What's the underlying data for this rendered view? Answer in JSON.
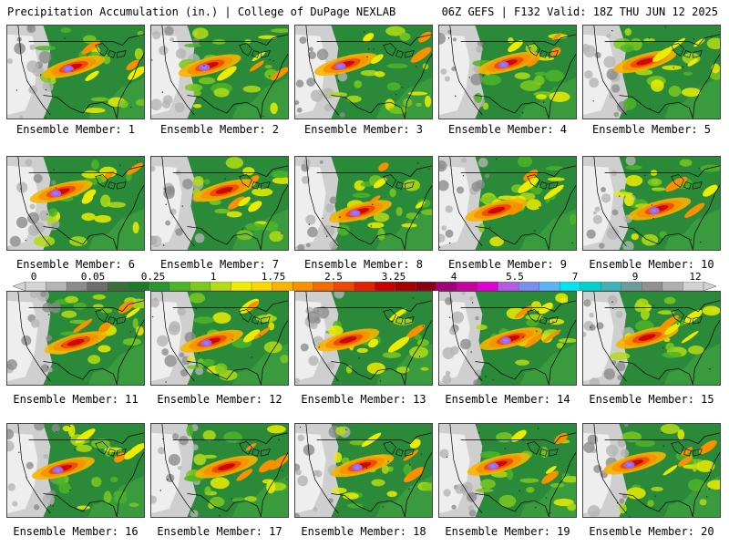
{
  "header": {
    "left_title": "Precipitation Accumulation (in.) | College of DuPage NEXLAB",
    "right_title": "06Z GEFS | F132 Valid: 18Z THU JUN 12 2025"
  },
  "colorbar": {
    "labels": [
      "0",
      "0.05",
      "0.25",
      "1",
      "1.75",
      "2.5",
      "3.25",
      "4",
      "5.5",
      "7",
      "9",
      "12"
    ],
    "colors": [
      "#d4d4d4",
      "#b4b4b4",
      "#8c8c8c",
      "#6e6e6e",
      "#3c6e3c",
      "#1e7a28",
      "#2a962e",
      "#4cb428",
      "#7cc81e",
      "#b4dc14",
      "#ecec00",
      "#f8d800",
      "#f8b400",
      "#f89000",
      "#f46c00",
      "#ec4800",
      "#e02000",
      "#c80000",
      "#a40000",
      "#880018",
      "#a0007c",
      "#c8009c",
      "#e000d4",
      "#b45ae6",
      "#7c8cf0",
      "#5cb4f4",
      "#00e4f0",
      "#00d0d0",
      "#40b4b4",
      "#6e9c9c",
      "#909090",
      "#b0b0b0",
      "#d2d2d2"
    ]
  },
  "members": [
    {
      "label": "Ensemble Member: 1",
      "number": 1
    },
    {
      "label": "Ensemble Member: 2",
      "number": 2
    },
    {
      "label": "Ensemble Member: 3",
      "number": 3
    },
    {
      "label": "Ensemble Member: 4",
      "number": 4
    },
    {
      "label": "Ensemble Member: 5",
      "number": 5
    },
    {
      "label": "Ensemble Member: 6",
      "number": 6
    },
    {
      "label": "Ensemble Member: 7",
      "number": 7
    },
    {
      "label": "Ensemble Member: 8",
      "number": 8
    },
    {
      "label": "Ensemble Member: 9",
      "number": 9
    },
    {
      "label": "Ensemble Member: 10",
      "number": 10
    },
    {
      "label": "Ensemble Member: 11",
      "number": 11
    },
    {
      "label": "Ensemble Member: 12",
      "number": 12
    },
    {
      "label": "Ensemble Member: 13",
      "number": 13
    },
    {
      "label": "Ensemble Member: 14",
      "number": 14
    },
    {
      "label": "Ensemble Member: 15",
      "number": 15
    },
    {
      "label": "Ensemble Member: 16",
      "number": 16
    },
    {
      "label": "Ensemble Member: 17",
      "number": 17
    },
    {
      "label": "Ensemble Member: 18",
      "number": 18
    },
    {
      "label": "Ensemble Member: 19",
      "number": 19
    },
    {
      "label": "Ensemble Member: 20",
      "number": 20
    }
  ]
}
